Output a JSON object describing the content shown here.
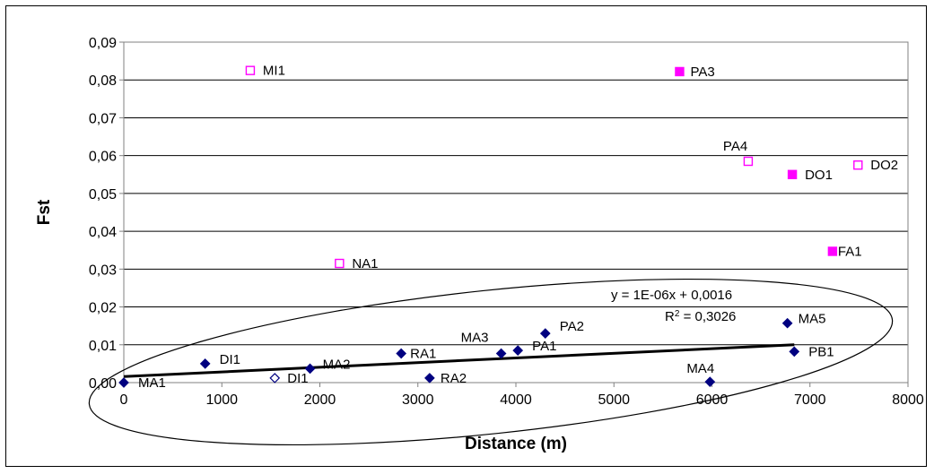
{
  "chart_data": {
    "type": "scatter",
    "xlabel": "Distance (m)",
    "ylabel": "Fst",
    "xlim": [
      0,
      8000
    ],
    "ylim": [
      0,
      0.09
    ],
    "x_ticks": [
      0,
      1000,
      2000,
      3000,
      4000,
      5000,
      6000,
      7000,
      8000
    ],
    "y_ticks": [
      0.0,
      0.01,
      0.02,
      0.03,
      0.04,
      0.05,
      0.06,
      0.07,
      0.08,
      0.09
    ],
    "y_tick_labels": [
      "0,00",
      "0,01",
      "0,02",
      "0,03",
      "0,04",
      "0,05",
      "0,06",
      "0,07",
      "0,08",
      "0,09"
    ],
    "grid": "horizontal",
    "legend": "none",
    "colors": {
      "diamond": "#000080",
      "magenta": "#ff00ff"
    },
    "series": [
      {
        "marker": "diamond-filled",
        "color": "#000080",
        "points": [
          {
            "x": 0,
            "y": 0.0,
            "label": "MA1"
          },
          {
            "x": 830,
            "y": 0.005,
            "label": "DI1"
          },
          {
            "x": 1900,
            "y": 0.0037,
            "label": "MA2"
          },
          {
            "x": 2830,
            "y": 0.0077,
            "label": "RA1"
          },
          {
            "x": 3120,
            "y": 0.0012,
            "label": "RA2"
          },
          {
            "x": 3850,
            "y": 0.0077,
            "label": "MA3"
          },
          {
            "x": 4020,
            "y": 0.0085,
            "label": "PA1"
          },
          {
            "x": 4300,
            "y": 0.013,
            "label": "PA2"
          },
          {
            "x": 5980,
            "y": 0.0002,
            "label": "MA4"
          },
          {
            "x": 6770,
            "y": 0.0157,
            "label": "MA5"
          },
          {
            "x": 6840,
            "y": 0.0082,
            "label": "PB1"
          }
        ]
      },
      {
        "marker": "diamond-open",
        "color": "#000080",
        "points": [
          {
            "x": 1540,
            "y": 0.0012,
            "label": "DI1"
          }
        ]
      },
      {
        "marker": "square-filled",
        "color": "#ff00ff",
        "points": [
          {
            "x": 5670,
            "y": 0.0822,
            "label": "PA3"
          },
          {
            "x": 6820,
            "y": 0.055,
            "label": "DO1"
          },
          {
            "x": 7230,
            "y": 0.0347,
            "label": "FA1"
          }
        ]
      },
      {
        "marker": "square-open",
        "color": "#ff00ff",
        "points": [
          {
            "x": 1290,
            "y": 0.0825,
            "label": "MI1"
          },
          {
            "x": 2200,
            "y": 0.0315,
            "label": "NA1"
          },
          {
            "x": 6370,
            "y": 0.0585,
            "label": "PA4"
          },
          {
            "x": 7490,
            "y": 0.0575,
            "label": "DO2"
          }
        ]
      }
    ],
    "trendline": {
      "x": [
        0,
        6840
      ],
      "y": [
        0.0016,
        0.01
      ],
      "equation": "y = 1E-06x + 0,0016",
      "r2_label": "R",
      "r2_sup": "2",
      "r2_value": " = 0,3026"
    }
  }
}
